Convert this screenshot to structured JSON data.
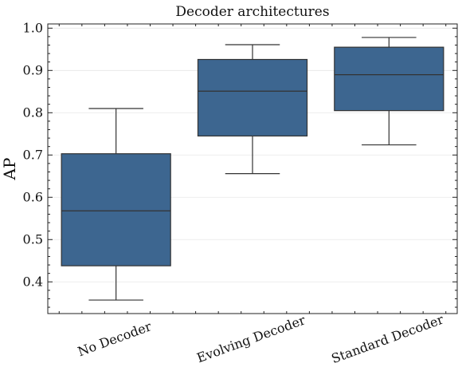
{
  "chart_data": {
    "type": "box",
    "title": "Decoder architectures",
    "xlabel": "",
    "ylabel": "AP",
    "ylim": [
      0.325,
      1.01
    ],
    "yticks": [
      0.4,
      0.5,
      0.6,
      0.7,
      0.8,
      0.9,
      1.0
    ],
    "ytick_labels": [
      "0.4",
      "0.5",
      "0.6",
      "0.7",
      "0.8",
      "0.9",
      "1.0"
    ],
    "grid": true,
    "color": "#3d6690",
    "categories": [
      "No Decoder",
      "Evolving Decoder",
      "Standard Decoder"
    ],
    "boxes": [
      {
        "label": "No Decoder",
        "whislo": 0.357,
        "q1": 0.438,
        "med": 0.568,
        "q3": 0.703,
        "whishi": 0.81
      },
      {
        "label": "Evolving Decoder",
        "whislo": 0.656,
        "q1": 0.745,
        "med": 0.851,
        "q3": 0.926,
        "whishi": 0.961
      },
      {
        "label": "Standard Decoder",
        "whislo": 0.724,
        "q1": 0.805,
        "med": 0.89,
        "q3": 0.955,
        "whishi": 0.978
      }
    ]
  }
}
